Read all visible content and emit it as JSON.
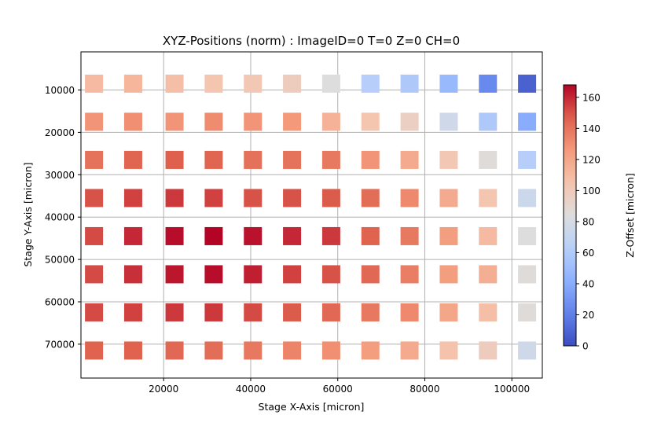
{
  "chart_data": {
    "type": "heatmap",
    "title": "XYZ-Positions (norm) : ImageID=0 T=0 Z=0 CH=0",
    "xlabel": "Stage X-Axis [micron]",
    "ylabel": "Stage Y-Axis [micron]",
    "colorbar_label": "Z-Offset [micron]",
    "colormap": "coolwarm",
    "xlim": [
      1000,
      107000
    ],
    "ylim": [
      78000,
      1000
    ],
    "y_inverted": true,
    "grid": true,
    "x_ticks": [
      20000,
      40000,
      60000,
      80000,
      100000
    ],
    "x_tick_labels": [
      "20000",
      "40000",
      "60000",
      "80000",
      "100000"
    ],
    "y_ticks": [
      10000,
      20000,
      30000,
      40000,
      50000,
      60000,
      70000
    ],
    "y_tick_labels": [
      "10000",
      "20000",
      "30000",
      "40000",
      "50000",
      "60000",
      "70000"
    ],
    "colorbar_range": [
      0,
      168
    ],
    "colorbar_ticks": [
      0,
      20,
      40,
      60,
      80,
      100,
      120,
      140,
      160
    ],
    "colorbar_tick_labels": [
      "0",
      "20",
      "40",
      "60",
      "80",
      "100",
      "120",
      "140",
      "160"
    ],
    "x": [
      4000,
      13000,
      22500,
      31500,
      40500,
      49500,
      58500,
      67500,
      76500,
      85500,
      94500,
      103500
    ],
    "y": [
      8500,
      17500,
      26500,
      35500,
      44500,
      53500,
      62500,
      71500
    ],
    "z": [
      [
        110,
        112,
        108,
        104,
        102,
        98,
        84,
        62,
        58,
        48,
        24,
        8
      ],
      [
        128,
        130,
        128,
        131,
        128,
        126,
        114,
        104,
        96,
        76,
        58,
        40
      ],
      [
        140,
        145,
        147,
        145,
        141,
        140,
        138,
        128,
        118,
        102,
        86,
        62
      ],
      [
        150,
        154,
        156,
        154,
        150,
        150,
        148,
        142,
        132,
        118,
        104,
        74
      ],
      [
        152,
        160,
        166,
        168,
        165,
        160,
        156,
        146,
        138,
        124,
        110,
        84
      ],
      [
        152,
        158,
        164,
        166,
        162,
        154,
        150,
        144,
        136,
        124,
        116,
        86
      ],
      [
        152,
        154,
        156,
        156,
        152,
        148,
        144,
        138,
        132,
        120,
        108,
        86
      ],
      [
        146,
        146,
        144,
        142,
        138,
        134,
        130,
        124,
        118,
        106,
        98,
        76
      ]
    ]
  }
}
